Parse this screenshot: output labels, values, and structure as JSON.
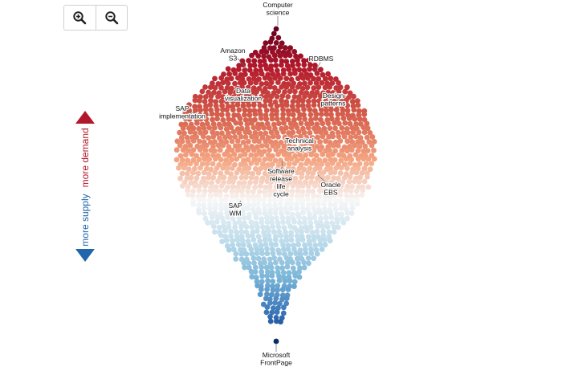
{
  "toolbar": {
    "zoom_in": {
      "icon": "zoom-in-icon"
    },
    "zoom_out": {
      "icon": "zoom-out-icon"
    }
  },
  "legend": {
    "supply_label": "more supply",
    "demand_label": "more demand",
    "supply_color": "#2166ac",
    "demand_color": "#b2182b"
  },
  "chart_data": {
    "type": "scatter",
    "description_axis": "vertical position encodes demand vs supply balance",
    "labels": [
      {
        "text": [
          "Computer",
          "science"
        ]
      },
      {
        "text": [
          "Amazon",
          "S3"
        ]
      },
      {
        "text": [
          "RDBMS"
        ]
      },
      {
        "text": [
          "Data",
          "visualization"
        ]
      },
      {
        "text": [
          "Design",
          "patterns"
        ]
      },
      {
        "text": [
          "SAP",
          "implementation"
        ]
      },
      {
        "text": [
          "Technical",
          "analysis"
        ]
      },
      {
        "text": [
          "Software",
          "release",
          "life",
          "cycle"
        ]
      },
      {
        "text": [
          "Oracle",
          "EBS"
        ]
      },
      {
        "text": [
          "SAP",
          "WM"
        ]
      },
      {
        "text": [
          "Microsoft",
          "FrontPage"
        ]
      }
    ]
  }
}
